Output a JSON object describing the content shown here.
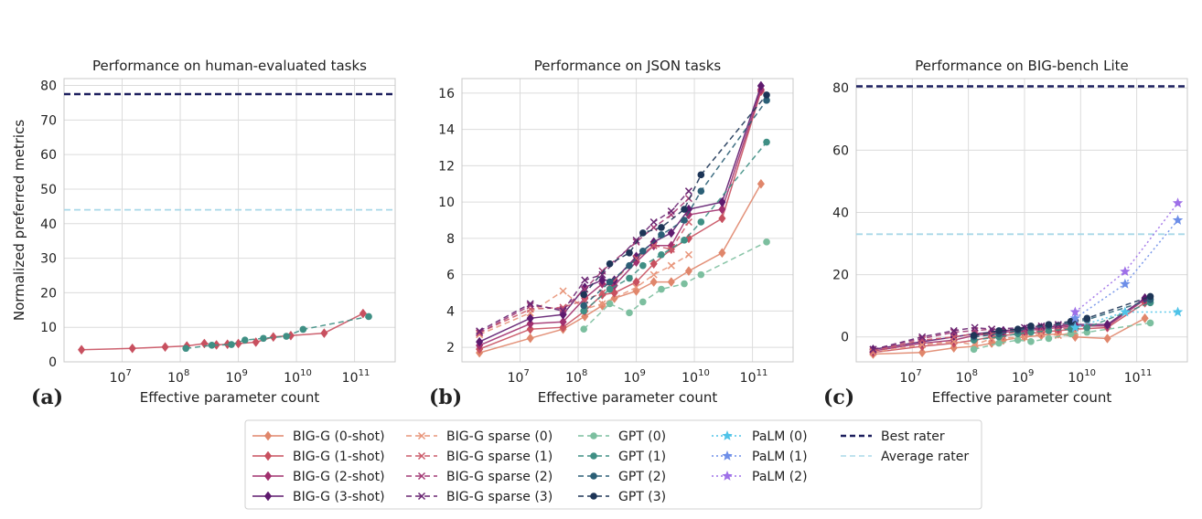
{
  "chart_data": [
    {
      "panel_label": "(a)",
      "type": "line",
      "title": "Performance on human-evaluated tasks",
      "xlabel": "Effective parameter count",
      "ylabel": "Normalized preferred metrics",
      "xscale": "log",
      "xlim": [
        1000000,
        500000000000
      ],
      "ylim": [
        0,
        82
      ],
      "xticks": [
        10000000,
        100000000,
        1000000000,
        10000000000,
        100000000000
      ],
      "xtick_labels": [
        [
          "10",
          "7"
        ],
        [
          "10",
          "8"
        ],
        [
          "10",
          "9"
        ],
        [
          "10",
          "10"
        ],
        [
          "10",
          "11"
        ]
      ],
      "yticks": [
        0,
        10,
        20,
        30,
        40,
        50,
        60,
        70,
        80
      ],
      "grid": true,
      "reference_lines": [
        {
          "key": "best",
          "y": 77.5
        },
        {
          "key": "avg",
          "y": 44
        }
      ],
      "series": [
        {
          "key": "bigg1",
          "x": [
            2000000,
            15000000,
            55000000,
            130000000,
            260000000,
            420000000,
            650000000,
            1000000000,
            2000000000,
            4000000000,
            8000000000,
            30000000000,
            140000000000
          ],
          "y": [
            3.5,
            3.9,
            4.3,
            4.6,
            5.3,
            4.9,
            5.1,
            5.3,
            5.7,
            7.2,
            7.6,
            8.3,
            14.0
          ]
        },
        {
          "key": "gpt1",
          "x": [
            125000000,
            350000000,
            760000000,
            1300000000,
            2700000000,
            6700000000,
            13000000000,
            175000000000
          ],
          "y": [
            3.9,
            4.8,
            5.0,
            6.3,
            6.8,
            7.4,
            9.4,
            13.1
          ]
        }
      ]
    },
    {
      "panel_label": "(b)",
      "type": "line",
      "title": "Performance on JSON tasks",
      "xlabel": "Effective parameter count",
      "xscale": "log",
      "xlim": [
        1000000,
        500000000000
      ],
      "ylim": [
        1.2,
        16.8
      ],
      "xticks": [
        10000000,
        100000000,
        1000000000,
        10000000000,
        100000000000
      ],
      "xtick_labels": [
        [
          "10",
          "7"
        ],
        [
          "10",
          "8"
        ],
        [
          "10",
          "9"
        ],
        [
          "10",
          "10"
        ],
        [
          "10",
          "11"
        ]
      ],
      "yticks": [
        2,
        4,
        6,
        8,
        10,
        12,
        14,
        16
      ],
      "grid": true,
      "series": [
        {
          "key": "bigg0",
          "x": [
            2000000,
            15000000,
            55000000,
            130000000,
            260000000,
            420000000,
            1000000000,
            2000000000,
            4000000000,
            8000000000,
            30000000000,
            140000000000
          ],
          "y": [
            1.7,
            2.5,
            3.0,
            3.7,
            4.3,
            4.7,
            5.1,
            5.6,
            5.6,
            6.2,
            7.2,
            11.0
          ]
        },
        {
          "key": "bigg1",
          "x": [
            2000000,
            15000000,
            55000000,
            130000000,
            260000000,
            420000000,
            1000000000,
            2000000000,
            4000000000,
            8000000000,
            30000000000,
            140000000000
          ],
          "y": [
            1.9,
            3.0,
            3.1,
            4.0,
            4.9,
            5.0,
            5.6,
            6.6,
            7.4,
            8.0,
            9.1,
            16.1
          ]
        },
        {
          "key": "bigg2",
          "x": [
            2000000,
            15000000,
            55000000,
            130000000,
            260000000,
            420000000,
            1000000000,
            2000000000,
            4000000000,
            8000000000,
            30000000000,
            140000000000
          ],
          "y": [
            2.1,
            3.3,
            3.4,
            4.7,
            5.5,
            5.4,
            6.7,
            7.6,
            7.6,
            9.3,
            9.6,
            16.2
          ]
        },
        {
          "key": "bigg3",
          "x": [
            2000000,
            15000000,
            55000000,
            130000000,
            260000000,
            420000000,
            1000000000,
            2000000000,
            4000000000,
            8000000000,
            30000000000,
            140000000000
          ],
          "y": [
            2.3,
            3.6,
            3.8,
            5.3,
            5.7,
            5.7,
            7.0,
            7.8,
            8.3,
            9.6,
            10.0,
            16.4
          ]
        },
        {
          "key": "sp0",
          "x": [
            2000000,
            15000000,
            55000000,
            130000000,
            260000000,
            1000000000,
            2000000000,
            4000000000,
            8000000000
          ],
          "y": [
            2.7,
            3.9,
            5.1,
            4.1,
            4.4,
            5.3,
            6.0,
            6.5,
            7.1
          ]
        },
        {
          "key": "sp1",
          "x": [
            2000000,
            15000000,
            55000000,
            130000000,
            260000000,
            1000000000,
            2000000000,
            4000000000,
            8000000000
          ],
          "y": [
            2.8,
            4.1,
            4.2,
            4.6,
            5.0,
            6.9,
            7.6,
            7.4,
            8.9
          ]
        },
        {
          "key": "sp2",
          "x": [
            2000000,
            15000000,
            55000000,
            130000000,
            260000000,
            1000000000,
            2000000000,
            4000000000,
            8000000000
          ],
          "y": [
            2.8,
            4.3,
            4.1,
            5.2,
            6.2,
            7.8,
            8.6,
            9.3,
            10.2
          ]
        },
        {
          "key": "sp3",
          "x": [
            2000000,
            15000000,
            55000000,
            130000000,
            260000000,
            1000000000,
            2000000000,
            4000000000,
            8000000000
          ],
          "y": [
            2.9,
            4.4,
            4.0,
            5.7,
            6.0,
            7.9,
            8.9,
            9.5,
            10.6
          ]
        },
        {
          "key": "gpt0",
          "x": [
            125000000,
            350000000,
            760000000,
            1300000000,
            2700000000,
            6700000000,
            13000000000,
            175000000000
          ],
          "y": [
            3.0,
            4.4,
            3.9,
            4.5,
            5.2,
            5.5,
            6.0,
            7.8
          ]
        },
        {
          "key": "gpt1",
          "x": [
            125000000,
            350000000,
            760000000,
            1300000000,
            2700000000,
            6700000000,
            13000000000,
            175000000000
          ],
          "y": [
            4.0,
            5.2,
            5.8,
            6.5,
            7.1,
            7.9,
            8.9,
            13.3
          ]
        },
        {
          "key": "gpt2",
          "x": [
            125000000,
            350000000,
            760000000,
            1300000000,
            2700000000,
            6700000000,
            13000000000,
            175000000000
          ],
          "y": [
            4.3,
            5.6,
            6.5,
            7.3,
            8.2,
            9.0,
            10.6,
            15.6
          ]
        },
        {
          "key": "gpt3",
          "x": [
            125000000,
            350000000,
            760000000,
            1300000000,
            2700000000,
            6700000000,
            13000000000,
            175000000000
          ],
          "y": [
            4.9,
            6.6,
            7.2,
            8.3,
            8.6,
            9.6,
            11.5,
            15.9
          ]
        }
      ]
    },
    {
      "panel_label": "(c)",
      "type": "line",
      "title": "Performance on BIG-bench Lite",
      "xlabel": "Effective parameter count",
      "xscale": "log",
      "xlim": [
        1000000,
        800000000000
      ],
      "ylim": [
        -8,
        83
      ],
      "xticks": [
        10000000,
        100000000,
        1000000000,
        10000000000,
        100000000000
      ],
      "xtick_labels": [
        [
          "10",
          "7"
        ],
        [
          "10",
          "8"
        ],
        [
          "10",
          "9"
        ],
        [
          "10",
          "10"
        ],
        [
          "10",
          "11"
        ]
      ],
      "yticks": [
        0,
        20,
        40,
        60,
        80
      ],
      "grid": true,
      "reference_lines": [
        {
          "key": "best",
          "y": 80.5
        },
        {
          "key": "avg",
          "y": 33
        }
      ],
      "series": [
        {
          "key": "bigg0",
          "x": [
            2000000,
            15000000,
            55000000,
            130000000,
            260000000,
            420000000,
            1000000000,
            2000000000,
            4000000000,
            8000000000,
            30000000000,
            140000000000
          ],
          "y": [
            -5.5,
            -5.0,
            -3.5,
            -3.0,
            -2.0,
            -1.0,
            0.0,
            0.5,
            1.0,
            0.0,
            -0.5,
            6.0
          ]
        },
        {
          "key": "bigg1",
          "x": [
            2000000,
            15000000,
            55000000,
            130000000,
            260000000,
            420000000,
            1000000000,
            2000000000,
            4000000000,
            8000000000,
            30000000000,
            140000000000
          ],
          "y": [
            -5.0,
            -3.0,
            -2.0,
            -1.0,
            0.0,
            0.5,
            1.0,
            1.5,
            2.0,
            2.5,
            3.0,
            11.0
          ]
        },
        {
          "key": "bigg2",
          "x": [
            2000000,
            15000000,
            55000000,
            130000000,
            260000000,
            420000000,
            1000000000,
            2000000000,
            4000000000,
            8000000000,
            30000000000,
            140000000000
          ],
          "y": [
            -4.5,
            -2.0,
            -1.0,
            0.5,
            1.0,
            1.5,
            2.0,
            2.5,
            3.0,
            3.5,
            3.5,
            12.0
          ]
        },
        {
          "key": "bigg3",
          "x": [
            2000000,
            15000000,
            55000000,
            130000000,
            260000000,
            420000000,
            1000000000,
            2000000000,
            4000000000,
            8000000000,
            30000000000,
            140000000000
          ],
          "y": [
            -4.0,
            -1.5,
            0.0,
            1.0,
            1.5,
            2.0,
            2.5,
            3.0,
            3.5,
            4.0,
            4.0,
            12.5
          ]
        },
        {
          "key": "sp0",
          "x": [
            2000000,
            15000000,
            55000000,
            130000000,
            260000000,
            1000000000,
            2000000000,
            4000000000,
            8000000000
          ],
          "y": [
            -5.0,
            -2.5,
            -1.5,
            -2.5,
            -0.5,
            0.0,
            1.0,
            0.5,
            1.5
          ]
        },
        {
          "key": "sp1",
          "x": [
            2000000,
            15000000,
            55000000,
            130000000,
            260000000,
            1000000000,
            2000000000,
            4000000000,
            8000000000
          ],
          "y": [
            -4.5,
            -1.0,
            0.0,
            1.0,
            1.0,
            1.5,
            2.0,
            2.5,
            3.0
          ]
        },
        {
          "key": "sp2",
          "x": [
            2000000,
            15000000,
            55000000,
            130000000,
            260000000,
            1000000000,
            2000000000,
            4000000000,
            8000000000
          ],
          "y": [
            -4.0,
            -0.5,
            1.5,
            2.0,
            2.5,
            2.0,
            3.0,
            3.5,
            4.0
          ]
        },
        {
          "key": "sp3",
          "x": [
            2000000,
            15000000,
            55000000,
            130000000,
            260000000,
            1000000000,
            2000000000,
            4000000000,
            8000000000
          ],
          "y": [
            -4.0,
            0.0,
            2.0,
            3.0,
            2.5,
            3.0,
            3.5,
            4.0,
            4.5
          ]
        },
        {
          "key": "gpt0",
          "x": [
            125000000,
            350000000,
            760000000,
            1300000000,
            2700000000,
            6700000000,
            13000000000,
            175000000000
          ],
          "y": [
            -4.0,
            -2.0,
            -1.0,
            -1.5,
            -0.5,
            1.0,
            1.5,
            4.5
          ]
        },
        {
          "key": "gpt1",
          "x": [
            125000000,
            350000000,
            760000000,
            1300000000,
            2700000000,
            6700000000,
            13000000000,
            175000000000
          ],
          "y": [
            -1.0,
            0.0,
            1.0,
            1.5,
            2.0,
            2.5,
            3.0,
            11.0
          ]
        },
        {
          "key": "gpt2",
          "x": [
            125000000,
            350000000,
            760000000,
            1300000000,
            2700000000,
            6700000000,
            13000000000,
            175000000000
          ],
          "y": [
            0.0,
            1.0,
            2.0,
            3.0,
            3.5,
            4.5,
            5.5,
            12.0
          ]
        },
        {
          "key": "gpt3",
          "x": [
            125000000,
            350000000,
            760000000,
            1300000000,
            2700000000,
            6700000000,
            13000000000,
            175000000000
          ],
          "y": [
            0.5,
            2.0,
            2.5,
            3.5,
            4.0,
            5.0,
            6.0,
            13.0
          ]
        },
        {
          "key": "palm0",
          "x": [
            8000000000,
            62000000000,
            540000000000
          ],
          "y": [
            3.0,
            8.0,
            8.0
          ]
        },
        {
          "key": "palm1",
          "x": [
            8000000000,
            62000000000,
            540000000000
          ],
          "y": [
            6.0,
            17.0,
            37.5
          ]
        },
        {
          "key": "palm2",
          "x": [
            8000000000,
            62000000000,
            540000000000
          ],
          "y": [
            8.0,
            21.0,
            43.0
          ]
        }
      ]
    }
  ],
  "legend": {
    "placement": "bottom-center",
    "columns": [
      [
        {
          "key": "bigg0",
          "label": "BIG-G (0-shot)"
        },
        {
          "key": "bigg1",
          "label": "BIG-G (1-shot)"
        },
        {
          "key": "bigg2",
          "label": "BIG-G (2-shot)"
        },
        {
          "key": "bigg3",
          "label": "BIG-G (3-shot)"
        }
      ],
      [
        {
          "key": "sp0",
          "label": "BIG-G sparse (0)"
        },
        {
          "key": "sp1",
          "label": "BIG-G sparse (1)"
        },
        {
          "key": "sp2",
          "label": "BIG-G sparse (2)"
        },
        {
          "key": "sp3",
          "label": "BIG-G sparse (3)"
        }
      ],
      [
        {
          "key": "gpt0",
          "label": "GPT (0)"
        },
        {
          "key": "gpt1",
          "label": "GPT (1)"
        },
        {
          "key": "gpt2",
          "label": "GPT (2)"
        },
        {
          "key": "gpt3",
          "label": "GPT (3)"
        }
      ],
      [
        {
          "key": "palm0",
          "label": "PaLM (0)"
        },
        {
          "key": "palm1",
          "label": "PaLM (1)"
        },
        {
          "key": "palm2",
          "label": "PaLM (2)"
        }
      ],
      [
        {
          "key": "best",
          "label": "Best rater"
        },
        {
          "key": "avg",
          "label": "Average rater"
        }
      ]
    ]
  },
  "styles": {
    "bigg0": {
      "color": "#e0866b",
      "marker": "diamond",
      "dash": "solid"
    },
    "bigg1": {
      "color": "#c8505f",
      "marker": "diamond",
      "dash": "solid"
    },
    "bigg2": {
      "color": "#a1306e",
      "marker": "diamond",
      "dash": "solid"
    },
    "bigg3": {
      "color": "#5e1a6e",
      "marker": "diamond",
      "dash": "solid"
    },
    "sp0": {
      "color": "#e8957a",
      "marker": "x",
      "dash": "dashed"
    },
    "sp1": {
      "color": "#cc5b6a",
      "marker": "x",
      "dash": "dashed"
    },
    "sp2": {
      "color": "#a33b76",
      "marker": "x",
      "dash": "dashed"
    },
    "sp3": {
      "color": "#6a2672",
      "marker": "x",
      "dash": "dashed"
    },
    "gpt0": {
      "color": "#7cbf9f",
      "marker": "circle",
      "dash": "dashed"
    },
    "gpt1": {
      "color": "#3f8f84",
      "marker": "circle",
      "dash": "dashed"
    },
    "gpt2": {
      "color": "#2b5f76",
      "marker": "circle",
      "dash": "dashed"
    },
    "gpt3": {
      "color": "#1d3557",
      "marker": "circle",
      "dash": "dashed"
    },
    "palm0": {
      "color": "#4fc3e8",
      "marker": "star",
      "dash": "dotted"
    },
    "palm1": {
      "color": "#6d8ee8",
      "marker": "star",
      "dash": "dotted"
    },
    "palm2": {
      "color": "#9e70e8",
      "marker": "star",
      "dash": "dotted"
    },
    "best": {
      "color": "#1c1f5e",
      "marker": "none",
      "dash": "dashed"
    },
    "avg": {
      "color": "#a8d8e8",
      "marker": "none",
      "dash": "dashed"
    }
  }
}
